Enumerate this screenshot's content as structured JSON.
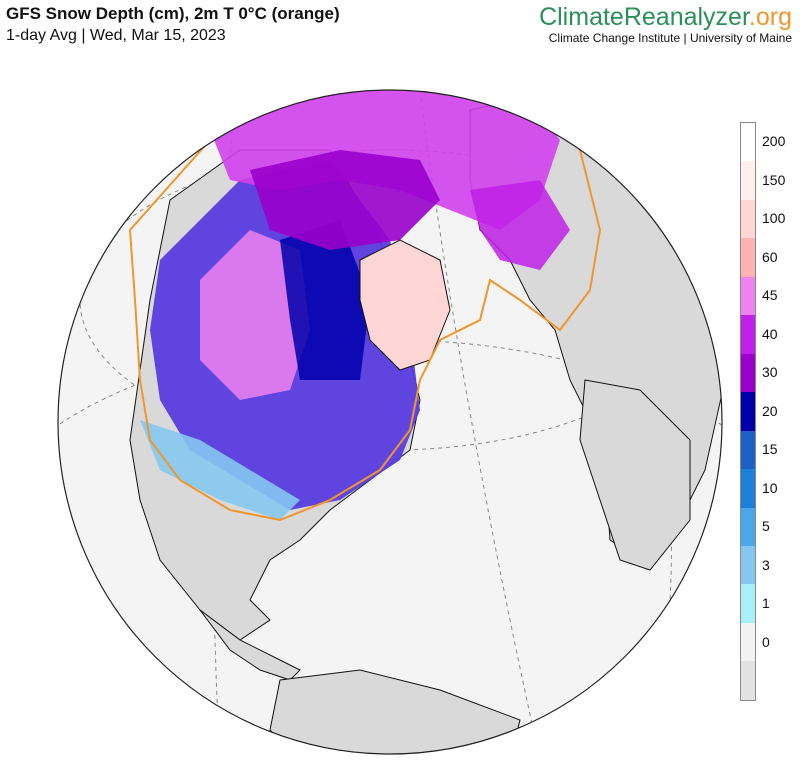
{
  "header": {
    "title": "GFS Snow Depth (cm), 2m T 0°C (orange)",
    "subtitle": "1-day Avg | Wed, Mar 15, 2023"
  },
  "brand": {
    "part1": "Climate",
    "part2": "Reanalyzer",
    "part3": ".org",
    "subtitle": "Climate Change Institute | University of Maine"
  },
  "legend": {
    "labels": [
      "200",
      "150",
      "100",
      "60",
      "45",
      "40",
      "30",
      "20",
      "15",
      "10",
      "5",
      "3",
      "1",
      "0"
    ],
    "colors": [
      "#ffffff",
      "#fff0f0",
      "#ffd6d6",
      "#ffb0b0",
      "#ee82ee",
      "#c020e8",
      "#9900cc",
      "#0000aa",
      "#1c60c8",
      "#1a80dc",
      "#4aa8e8",
      "#84c8f0",
      "#a8f0f8",
      "#f2f2f2",
      "#e2e2e2"
    ]
  },
  "map": {
    "ocean_color": "#f4f4f4",
    "land_color": "#d9d9d9",
    "freezing_line_color": "#f0962c"
  }
}
